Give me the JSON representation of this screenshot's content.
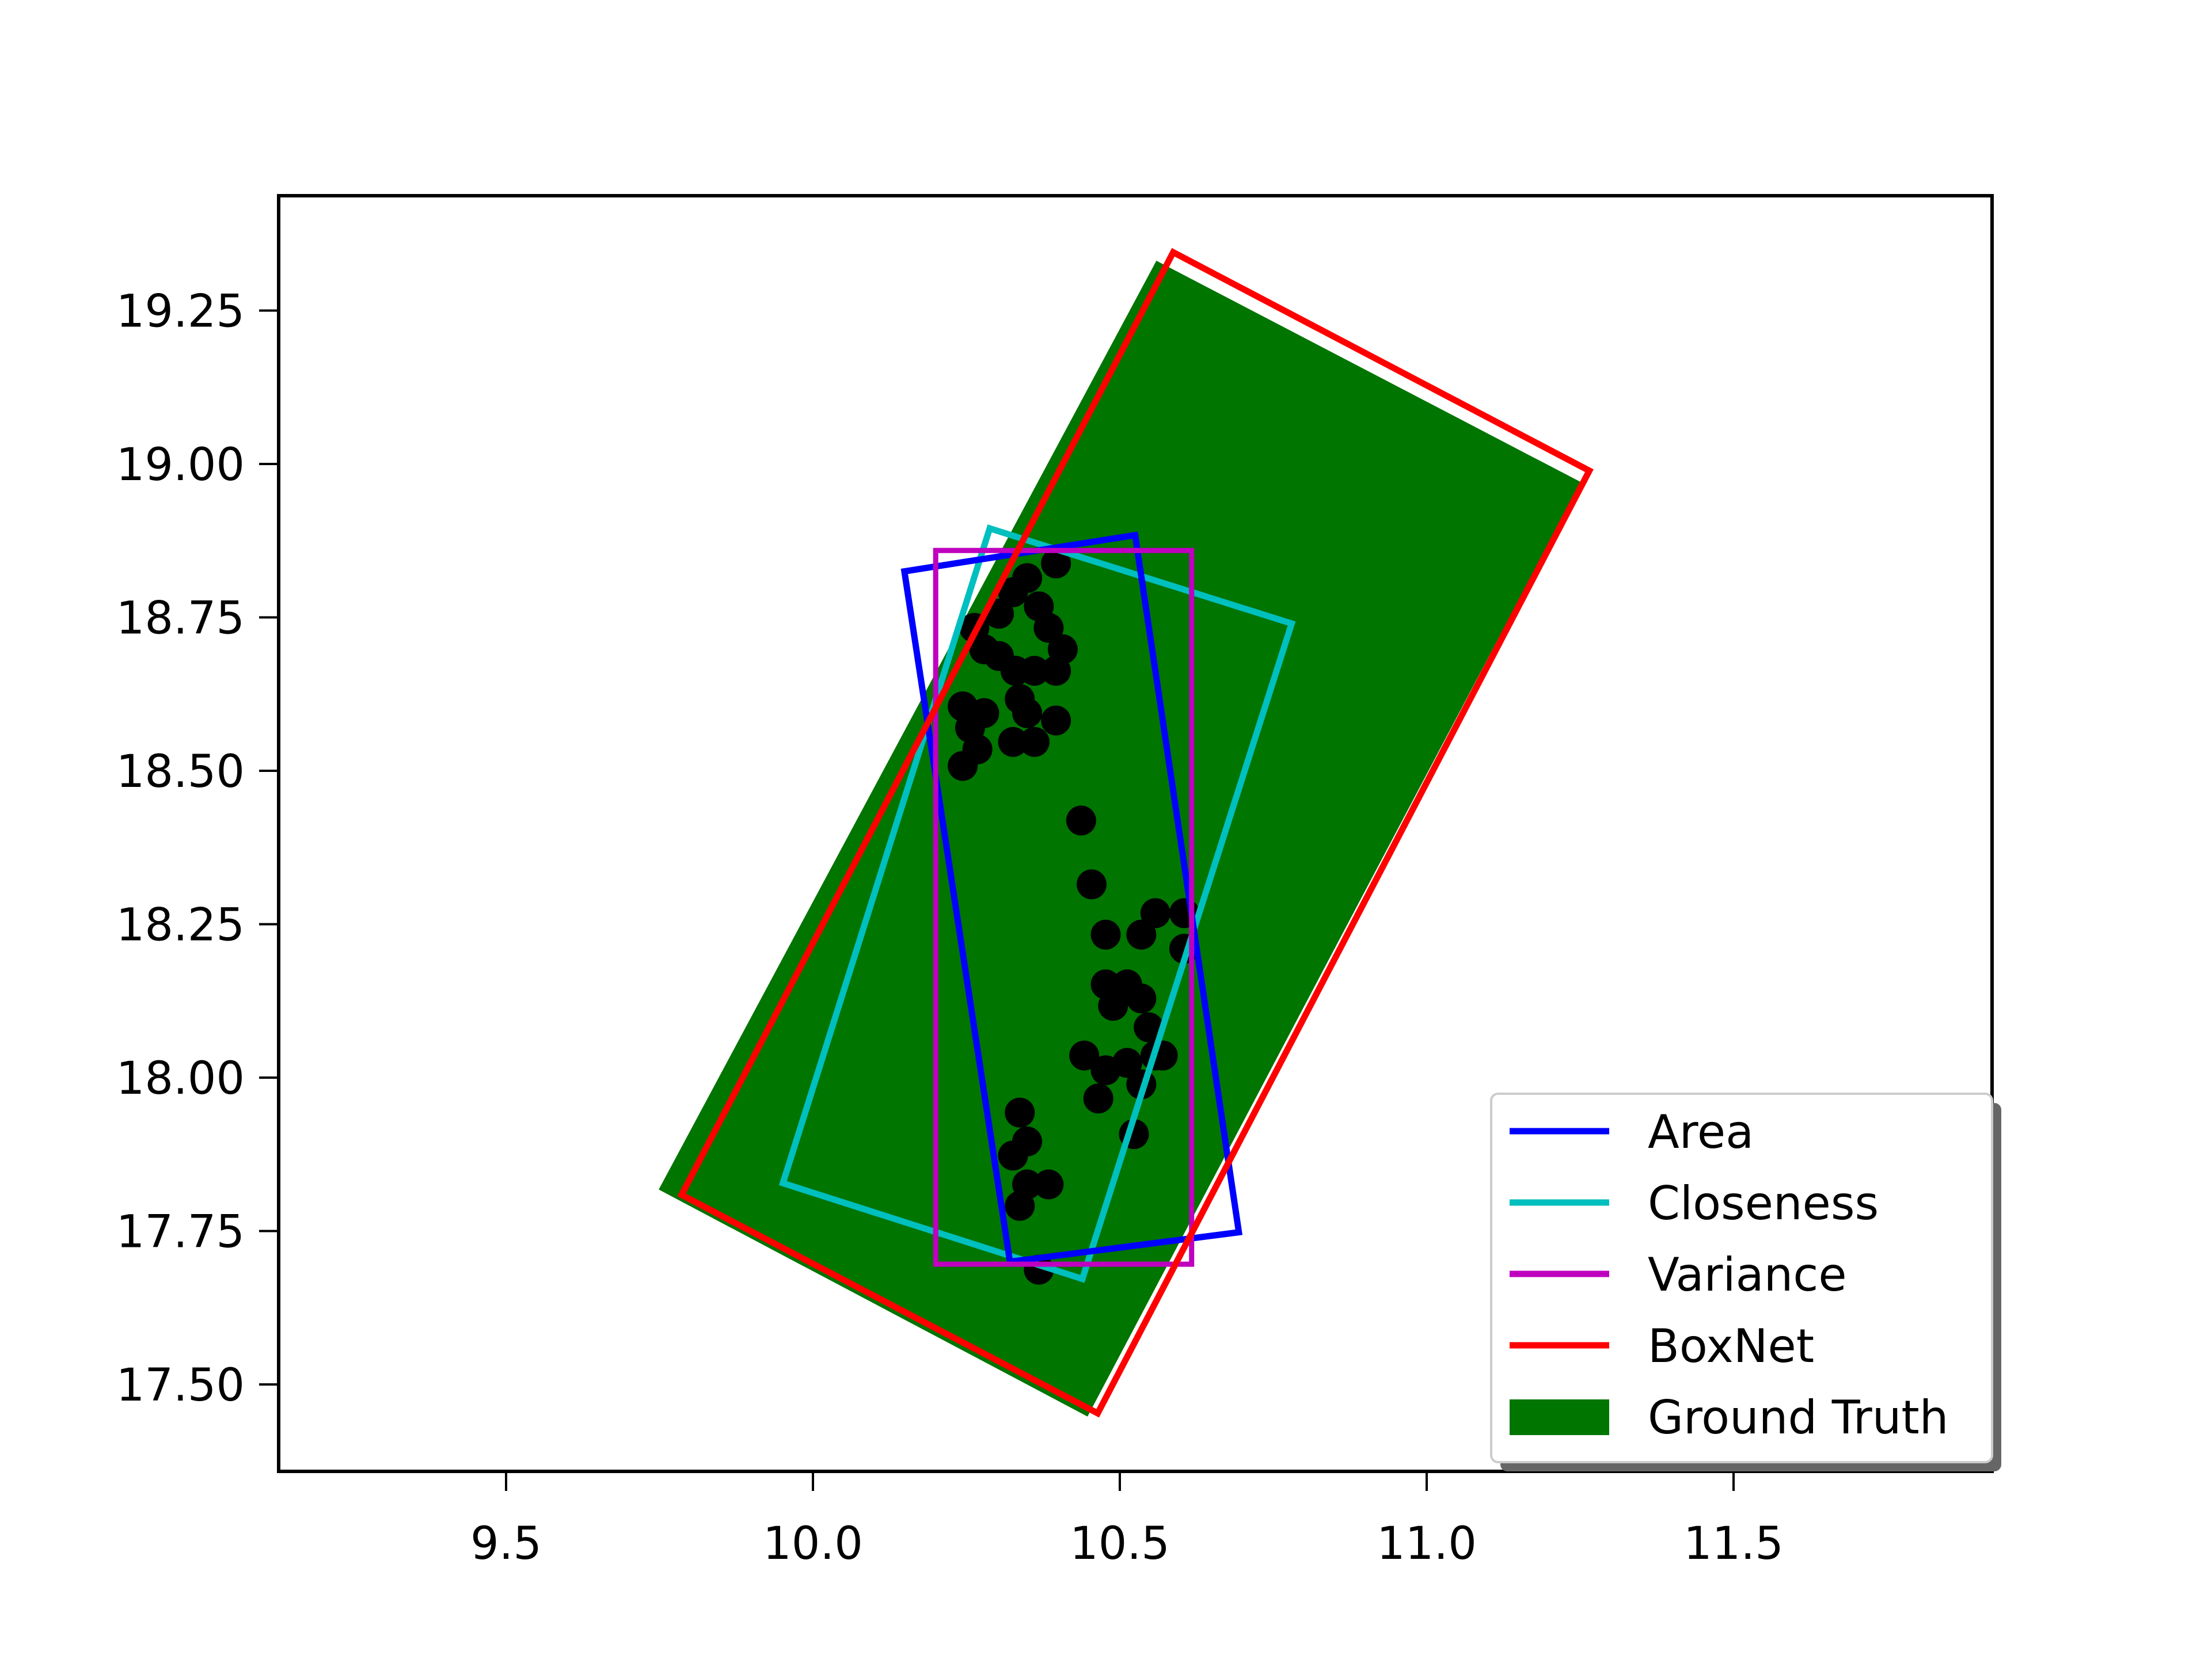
{
  "chart_data": {
    "type": "scatter",
    "title": "",
    "xlabel": "",
    "ylabel": "",
    "xlim": [
      9.13,
      11.92
    ],
    "ylim": [
      17.36,
      19.44
    ],
    "grid": false,
    "legend_position": "lower right",
    "x_ticks": [
      "9.5",
      "10.0",
      "10.5",
      "11.0",
      "11.5"
    ],
    "x_tick_values": [
      9.5,
      10.0,
      10.5,
      11.0,
      11.5
    ],
    "y_ticks": [
      "17.50",
      "17.75",
      "18.00",
      "18.25",
      "18.50",
      "18.75",
      "19.00",
      "19.25"
    ],
    "y_tick_values": [
      17.5,
      17.75,
      18.0,
      18.25,
      18.5,
      18.75,
      19.0,
      19.25
    ],
    "series": [
      {
        "name": "Ground Truth",
        "kind": "filled-polygon",
        "color": "#007500",
        "vertices": [
          [
            10.56,
            19.33
          ],
          [
            11.25,
            18.97
          ],
          [
            10.447,
            17.449
          ],
          [
            9.75,
            17.818
          ]
        ]
      },
      {
        "name": "Area",
        "kind": "polygon-outline",
        "color": "#0000ff",
        "vertices": [
          [
            10.149,
            18.825
          ],
          [
            10.525,
            18.884
          ],
          [
            10.694,
            17.748
          ],
          [
            10.321,
            17.7
          ]
        ]
      },
      {
        "name": "Closeness",
        "kind": "polygon-outline",
        "color": "#00bfbf",
        "vertices": [
          [
            10.288,
            18.895
          ],
          [
            10.78,
            18.74
          ],
          [
            10.439,
            17.672
          ],
          [
            9.951,
            17.828
          ]
        ]
      },
      {
        "name": "Variance",
        "kind": "polygon-outline",
        "color": "#bf00bf",
        "vertices": [
          [
            10.2,
            18.859
          ],
          [
            10.617,
            18.859
          ],
          [
            10.617,
            17.696
          ],
          [
            10.2,
            17.696
          ]
        ]
      },
      {
        "name": "BoxNet",
        "kind": "polygon-outline",
        "color": "#ff0000",
        "vertices": [
          [
            10.587,
            19.345
          ],
          [
            11.265,
            18.989
          ],
          [
            10.464,
            17.453
          ],
          [
            9.786,
            17.809
          ]
        ]
      },
      {
        "name": "points",
        "kind": "scatter",
        "color": "#000000",
        "points": [
          [
            10.263,
            18.733
          ],
          [
            10.279,
            18.698
          ],
          [
            10.303,
            18.756
          ],
          [
            10.326,
            18.791
          ],
          [
            10.349,
            18.814
          ],
          [
            10.396,
            18.838
          ],
          [
            10.368,
            18.768
          ],
          [
            10.384,
            18.733
          ],
          [
            10.407,
            18.698
          ],
          [
            10.396,
            18.663
          ],
          [
            10.361,
            18.663
          ],
          [
            10.33,
            18.663
          ],
          [
            10.303,
            18.687
          ],
          [
            10.337,
            18.617
          ],
          [
            10.349,
            18.594
          ],
          [
            10.396,
            18.582
          ],
          [
            10.361,
            18.547
          ],
          [
            10.326,
            18.547
          ],
          [
            10.244,
            18.605
          ],
          [
            10.256,
            18.57
          ],
          [
            10.268,
            18.535
          ],
          [
            10.244,
            18.508
          ],
          [
            10.279,
            18.594
          ],
          [
            10.437,
            18.419
          ],
          [
            10.454,
            18.315
          ],
          [
            10.477,
            18.233
          ],
          [
            10.535,
            18.233
          ],
          [
            10.558,
            18.268
          ],
          [
            10.605,
            18.268
          ],
          [
            10.605,
            18.21
          ],
          [
            10.477,
            18.152
          ],
          [
            10.512,
            18.152
          ],
          [
            10.535,
            18.129
          ],
          [
            10.547,
            18.082
          ],
          [
            10.558,
            18.036
          ],
          [
            10.489,
            18.117
          ],
          [
            10.442,
            18.036
          ],
          [
            10.477,
            18.012
          ],
          [
            10.512,
            18.024
          ],
          [
            10.535,
            17.989
          ],
          [
            10.465,
            17.966
          ],
          [
            10.57,
            18.036
          ],
          [
            10.523,
            17.908
          ],
          [
            10.337,
            17.943
          ],
          [
            10.349,
            17.896
          ],
          [
            10.326,
            17.873
          ],
          [
            10.349,
            17.826
          ],
          [
            10.384,
            17.826
          ],
          [
            10.337,
            17.791
          ],
          [
            10.368,
            17.687
          ]
        ]
      }
    ],
    "legend": [
      {
        "label": "Area",
        "color": "#0000ff",
        "kind": "line"
      },
      {
        "label": "Closeness",
        "color": "#00bfbf",
        "kind": "line"
      },
      {
        "label": "Variance",
        "color": "#bf00bf",
        "kind": "line"
      },
      {
        "label": "BoxNet",
        "color": "#ff0000",
        "kind": "line"
      },
      {
        "label": "Ground Truth",
        "color": "#007500",
        "kind": "patch"
      }
    ]
  }
}
